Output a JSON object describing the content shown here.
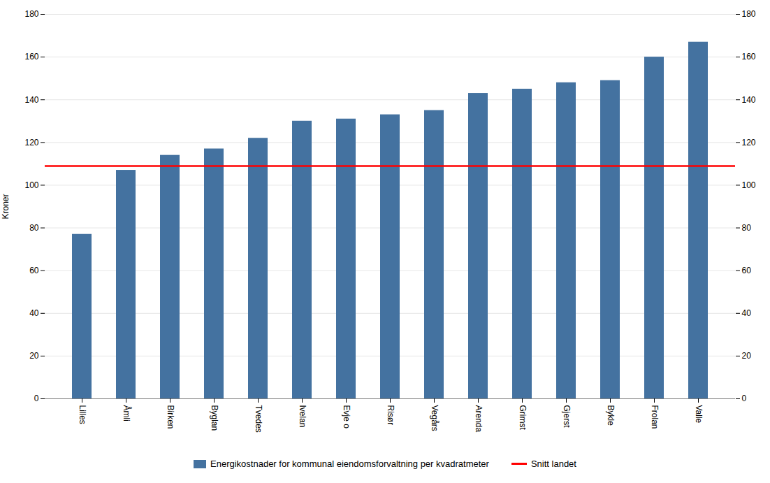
{
  "chart_data": {
    "type": "bar",
    "categories": [
      "Lilles",
      "Åmli",
      "Birken",
      "Byglan",
      "Tvedes",
      "Ivelan",
      "Evje o",
      "Risør",
      "Vegårs",
      "Arenda",
      "Grimst",
      "Gjerst",
      "Bykle",
      "Frolan",
      "Valle"
    ],
    "series": [
      {
        "name": "Energikostnader for kommunal eiendomsforvaltning per kvadratmeter",
        "type": "bar",
        "color": "#4472a0",
        "values": [
          77,
          107,
          114,
          117,
          122,
          130,
          131,
          133,
          135,
          143,
          145,
          148,
          149,
          160,
          167
        ]
      },
      {
        "name": "Snitt landet",
        "type": "hline",
        "color": "#ff0000",
        "value": 109
      }
    ],
    "ylabel": "Kroner",
    "ylim": [
      0,
      180
    ],
    "yticks": [
      0,
      20,
      40,
      60,
      80,
      100,
      120,
      140,
      160,
      180
    ],
    "y2lim": [
      0,
      180
    ],
    "y2ticks": [
      0,
      20,
      40,
      60,
      80,
      100,
      120,
      140,
      160,
      180
    ],
    "grid": true,
    "legend": "bottom"
  }
}
